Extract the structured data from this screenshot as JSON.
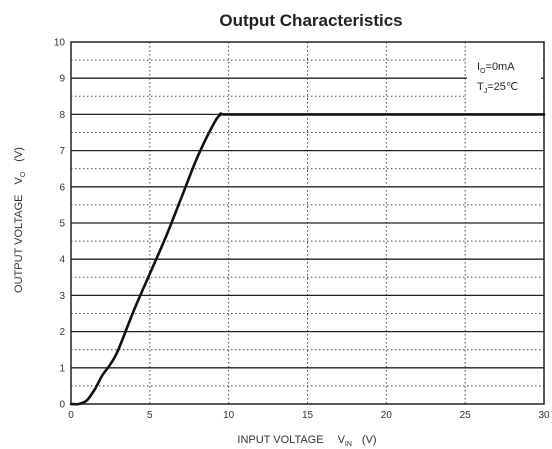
{
  "chart_data": {
    "type": "line",
    "title": "Output Characteristics",
    "xlabel_main": "INPUT VOLTAGE",
    "xlabel_symbol": "V",
    "xlabel_sub": "IN",
    "xlabel_unit": "(V)",
    "ylabel_main": "OUTPUT VOLTAGE",
    "ylabel_symbol": "V",
    "ylabel_sub": "O",
    "ylabel_unit": "(V)",
    "xlim": [
      0,
      30
    ],
    "ylim": [
      0,
      10
    ],
    "x_ticks": [
      0,
      5,
      10,
      15,
      20,
      25,
      30
    ],
    "y_ticks": [
      0,
      1,
      2,
      3,
      4,
      5,
      6,
      7,
      8,
      9,
      10
    ],
    "grid": true,
    "annotations": [
      {
        "main": "I",
        "sub": "O",
        "rest": "=0mA"
      },
      {
        "main": "T",
        "sub": "J",
        "rest": "=25℃"
      }
    ],
    "series": [
      {
        "x": [
          0,
          0.5,
          1.0,
          1.5,
          2.0,
          2.5,
          3.0,
          4.0,
          5.0,
          6.0,
          7.0,
          8.0,
          9.0,
          9.5,
          10.0,
          15.0,
          20.0,
          25.0,
          30.0
        ],
        "y": [
          0,
          0,
          0.1,
          0.4,
          0.8,
          1.1,
          1.5,
          2.6,
          3.6,
          4.6,
          5.7,
          6.8,
          7.7,
          8.0,
          8.0,
          8.0,
          8.0,
          8.0,
          8.0
        ]
      }
    ]
  }
}
